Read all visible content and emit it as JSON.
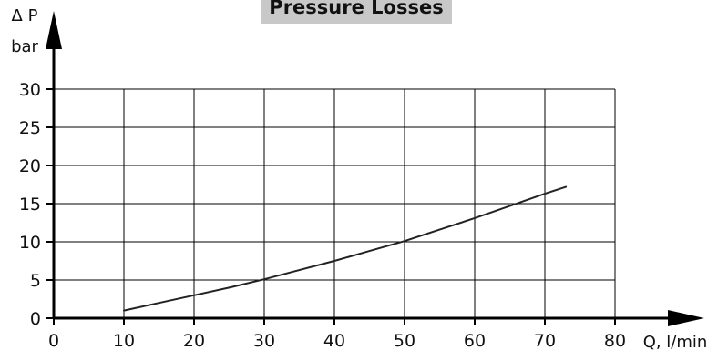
{
  "chart_data": {
    "type": "line",
    "title": "Pressure Losses",
    "ylabel_symbol": "Δ P",
    "ylabel_unit": "bar",
    "xlabel": "Q, l/min",
    "xlim": [
      0,
      80
    ],
    "ylim": [
      0,
      30
    ],
    "x_ticks": [
      "0",
      "10",
      "20",
      "30",
      "40",
      "50",
      "60",
      "70",
      "80"
    ],
    "y_ticks": [
      "0",
      "5",
      "10",
      "15",
      "20",
      "25",
      "30"
    ],
    "grid": true,
    "legend": "none",
    "series": [
      {
        "x": [
          10,
          15,
          20,
          25,
          30,
          35,
          40,
          45,
          50,
          55,
          60,
          65,
          70,
          73
        ],
        "y": [
          1.0,
          2.0,
          3.0,
          4.0,
          5.1,
          6.3,
          7.5,
          8.8,
          10.1,
          11.6,
          13.1,
          14.7,
          16.3,
          17.2
        ]
      }
    ],
    "colors": {
      "curve": "#222222",
      "axis": "#000000",
      "grid": "#000000",
      "title_bg": "#c8c8c8"
    }
  }
}
